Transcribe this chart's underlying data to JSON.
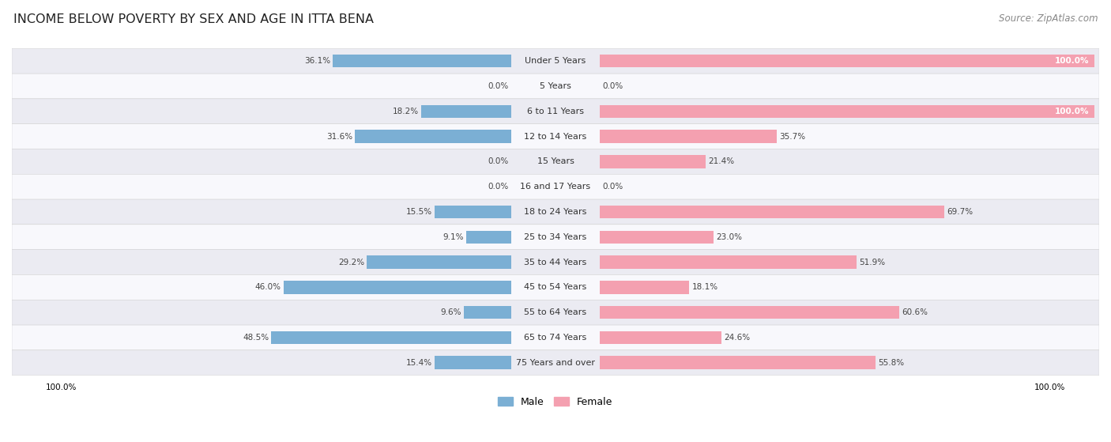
{
  "title": "INCOME BELOW POVERTY BY SEX AND AGE IN ITTA BENA",
  "source": "Source: ZipAtlas.com",
  "categories": [
    "Under 5 Years",
    "5 Years",
    "6 to 11 Years",
    "12 to 14 Years",
    "15 Years",
    "16 and 17 Years",
    "18 to 24 Years",
    "25 to 34 Years",
    "35 to 44 Years",
    "45 to 54 Years",
    "55 to 64 Years",
    "65 to 74 Years",
    "75 Years and over"
  ],
  "male": [
    36.1,
    0.0,
    18.2,
    31.6,
    0.0,
    0.0,
    15.5,
    9.1,
    29.2,
    46.0,
    9.6,
    48.5,
    15.4
  ],
  "female": [
    100.0,
    0.0,
    100.0,
    35.7,
    21.4,
    0.0,
    69.7,
    23.0,
    51.9,
    18.1,
    60.6,
    24.6,
    55.8
  ],
  "male_color": "#7bafd4",
  "female_color": "#f4a0b0",
  "male_label": "Male",
  "female_label": "Female",
  "bg_color_odd": "#ebebf2",
  "bg_color_even": "#f8f8fc",
  "axis_max": 100.0,
  "title_fontsize": 11.5,
  "source_fontsize": 8.5,
  "label_fontsize": 8.0,
  "bar_label_fontsize": 7.5,
  "legend_fontsize": 9
}
